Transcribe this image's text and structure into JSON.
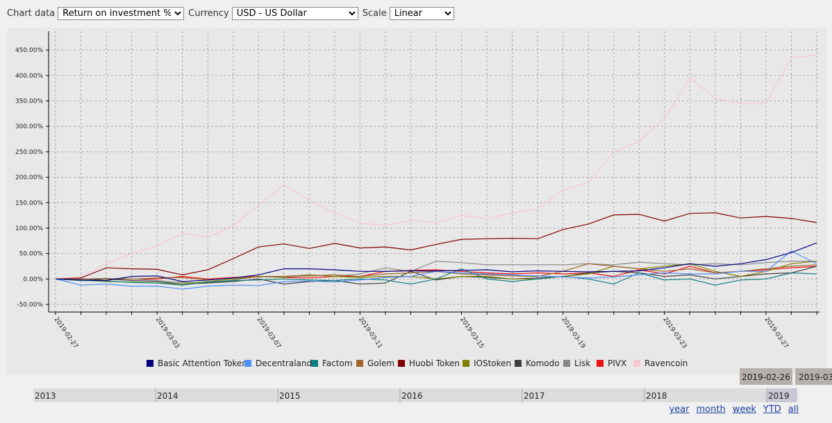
{
  "controls": {
    "chart_data_label": "Chart data",
    "chart_data_value": "Return on investment %",
    "currency_label": "Currency",
    "currency_value": "USD - US Dollar",
    "scale_label": "Scale",
    "scale_value": "Linear"
  },
  "chart_data": {
    "type": "line",
    "x": [
      "2019-02-27",
      "2019-02-28",
      "2019-03-01",
      "2019-03-02",
      "2019-03-03",
      "2019-03-04",
      "2019-03-05",
      "2019-03-06",
      "2019-03-07",
      "2019-03-08",
      "2019-03-09",
      "2019-03-10",
      "2019-03-11",
      "2019-03-12",
      "2019-03-13",
      "2019-03-14",
      "2019-03-15",
      "2019-03-16",
      "2019-03-17",
      "2019-03-18",
      "2019-03-19",
      "2019-03-20",
      "2019-03-21",
      "2019-03-22",
      "2019-03-23",
      "2019-03-24",
      "2019-03-25",
      "2019-03-26",
      "2019-03-27",
      "2019-03-28",
      "2019-03-29"
    ],
    "xlim": [
      "2019-02-27",
      "2019-03-29"
    ],
    "xticks": [
      "2019-02-27",
      "2019-03-03",
      "2019-03-07",
      "2019-03-11",
      "2019-03-15",
      "2019-03-19",
      "2019-03-23",
      "2019-03-27"
    ],
    "ylim": [
      -65,
      487
    ],
    "yticks": [
      {
        "value": -50,
        "label": "-50.00%"
      },
      {
        "value": 0,
        "label": "0.00%"
      },
      {
        "value": 50,
        "label": "50.00%"
      },
      {
        "value": 100,
        "label": "100.00%"
      },
      {
        "value": 150,
        "label": "150.00%"
      },
      {
        "value": 200,
        "label": "200.00%"
      },
      {
        "value": 250,
        "label": "250.00%"
      },
      {
        "value": 300,
        "label": "300.00%"
      },
      {
        "value": 350,
        "label": "350.00%"
      },
      {
        "value": 400,
        "label": "400.00%"
      },
      {
        "value": 450,
        "label": "450.00%"
      }
    ],
    "grid": true,
    "legend": "bottom",
    "series": [
      {
        "name": "Basic Attention Token",
        "color": "#000080",
        "values": [
          0,
          -2,
          -3,
          5,
          6,
          -5,
          -2,
          2,
          8,
          20,
          20,
          18,
          15,
          15,
          16,
          16,
          17,
          18,
          14,
          16,
          15,
          14,
          15,
          16,
          22,
          30,
          25,
          30,
          38,
          52,
          71
        ]
      },
      {
        "name": "Decentraland",
        "color": "#4f8ef7",
        "values": [
          0,
          -12,
          -10,
          -14,
          -14,
          -20,
          -14,
          -12,
          -13,
          -5,
          -4,
          -6,
          -2,
          3,
          5,
          15,
          12,
          10,
          8,
          6,
          4,
          2,
          4,
          8,
          12,
          10,
          10,
          15,
          15,
          55,
          30
        ]
      },
      {
        "name": "Factom",
        "color": "#0e7f7f",
        "values": [
          0,
          -3,
          -4,
          -7,
          -8,
          -12,
          -6,
          -3,
          -2,
          0,
          -2,
          -3,
          0,
          -2,
          -10,
          0,
          20,
          0,
          -5,
          0,
          5,
          0,
          -10,
          12,
          -2,
          0,
          -12,
          -2,
          0,
          12,
          10
        ]
      },
      {
        "name": "Golem",
        "color": "#a0642e",
        "values": [
          0,
          0,
          1,
          0,
          2,
          3,
          -2,
          2,
          4,
          5,
          6,
          8,
          5,
          10,
          12,
          15,
          10,
          8,
          6,
          5,
          15,
          30,
          25,
          20,
          15,
          20,
          12,
          15,
          20,
          25,
          28
        ]
      },
      {
        "name": "Huobi Token",
        "color": "#800000",
        "values": [
          0,
          2,
          22,
          20,
          19,
          8,
          18,
          40,
          63,
          69,
          60,
          70,
          61,
          63,
          57,
          68,
          78,
          79,
          80,
          79,
          97,
          108,
          126,
          127,
          114,
          129,
          130,
          120,
          123,
          119,
          111
        ]
      },
      {
        "name": "IOStoken",
        "color": "#808000",
        "values": [
          0,
          -2,
          -5,
          -6,
          -8,
          -10,
          -5,
          0,
          5,
          3,
          8,
          5,
          3,
          5,
          5,
          0,
          5,
          5,
          0,
          0,
          5,
          10,
          25,
          20,
          25,
          30,
          15,
          5,
          15,
          30,
          35
        ]
      },
      {
        "name": "Komodo",
        "color": "#404040",
        "values": [
          0,
          -3,
          0,
          -3,
          -5,
          -10,
          -8,
          -5,
          0,
          -10,
          -5,
          -3,
          -10,
          -8,
          15,
          -2,
          5,
          3,
          0,
          2,
          5,
          12,
          15,
          12,
          5,
          8,
          0,
          5,
          10,
          12,
          25
        ]
      },
      {
        "name": "Lisk",
        "color": "#888888",
        "values": [
          0,
          0,
          0,
          0,
          -3,
          -7,
          -8,
          -2,
          5,
          5,
          8,
          5,
          10,
          22,
          15,
          35,
          32,
          28,
          28,
          28,
          28,
          30,
          28,
          33,
          30,
          28,
          30,
          28,
          32,
          35,
          35
        ]
      },
      {
        "name": "PIVX",
        "color": "#ee1111",
        "values": [
          0,
          0,
          0,
          0,
          0,
          5,
          0,
          3,
          5,
          3,
          2,
          5,
          5,
          15,
          17,
          18,
          15,
          12,
          10,
          12,
          10,
          12,
          5,
          18,
          10,
          25,
          12,
          15,
          18,
          22,
          25
        ]
      },
      {
        "name": "Ravencoin",
        "color": "#f9c6d3",
        "values": [
          0,
          5,
          30,
          50,
          65,
          90,
          82,
          105,
          145,
          185,
          155,
          130,
          110,
          105,
          115,
          110,
          125,
          118,
          130,
          138,
          175,
          190,
          250,
          270,
          315,
          395,
          355,
          345,
          345,
          435,
          440
        ]
      }
    ]
  },
  "navigator": {
    "years": [
      "2013",
      "2014",
      "2015",
      "2016",
      "2017",
      "2018",
      "2019"
    ],
    "from": "2019-02-26",
    "to": "2019-03",
    "ranges": [
      "year",
      "month",
      "week",
      "YTD",
      "all"
    ]
  }
}
